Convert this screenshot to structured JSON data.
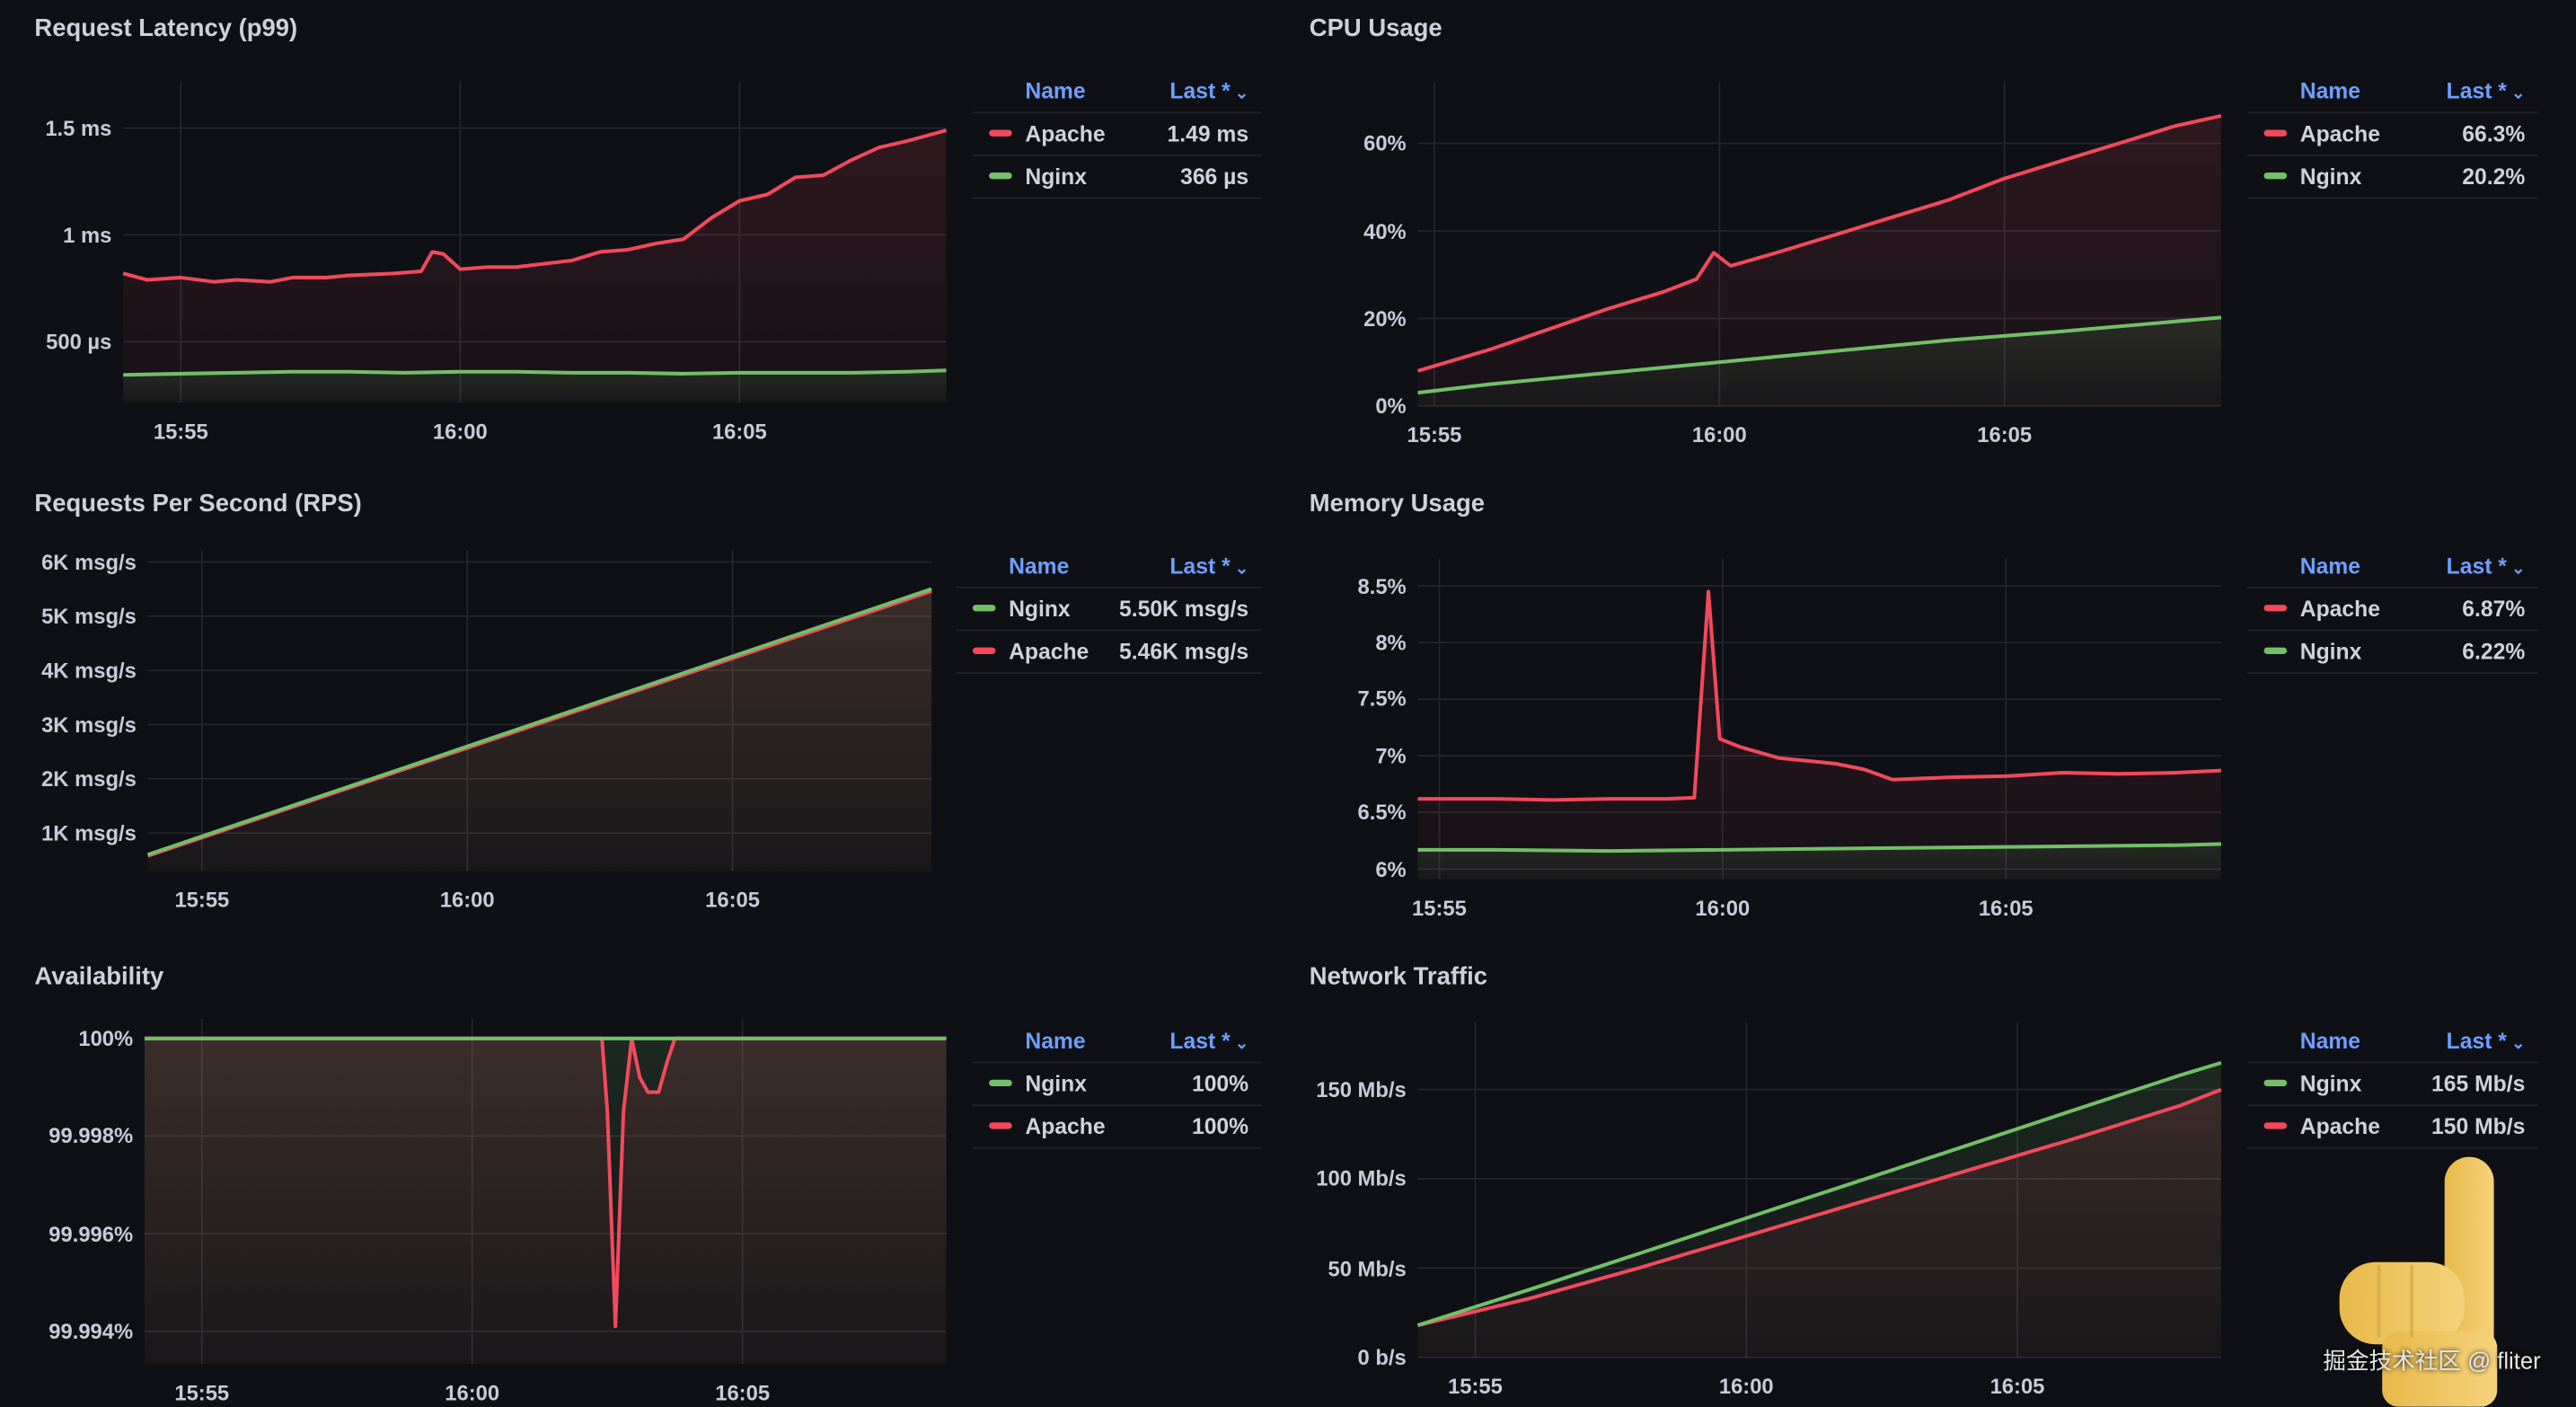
{
  "colors": {
    "apache": "#f2495c",
    "nginx": "#73bf69",
    "legend_header": "#6e9fff",
    "grid": "#24262e"
  },
  "watermark": "掘金技术社区 @ fliter",
  "panels": [
    {
      "title": "Request Latency (p99)",
      "legend": {
        "name_header": "Name",
        "last_header": "Last *",
        "sort_icon": "chevron-down-icon",
        "rows": [
          {
            "name": "Apache",
            "value": "1.49 ms",
            "color": "#f2495c"
          },
          {
            "name": "Nginx",
            "value": "366 µs",
            "color": "#73bf69"
          }
        ]
      },
      "chart_data": {
        "type": "area",
        "title": "Request Latency (p99)",
        "xlabel": "",
        "ylabel": "ms",
        "xlim": [
          53.97,
          68.7
        ],
        "ylim": [
          0.215,
          1.715
        ],
        "xticks": [
          {
            "v": 55,
            "label": "15:55"
          },
          {
            "v": 60,
            "label": "16:00"
          },
          {
            "v": 65,
            "label": "16:05"
          }
        ],
        "yticks": [
          {
            "v": 0.5,
            "label": "500 µs"
          },
          {
            "v": 1,
            "label": "1 ms"
          },
          {
            "v": 1.5,
            "label": "1.5 ms"
          }
        ],
        "series": [
          {
            "name": "Apache",
            "color": "#f2495c",
            "x": [
              53.97,
              54.4,
              55,
              55.6,
              56,
              56.6,
              57,
              57.6,
              58,
              58.8,
              59.3,
              59.5,
              59.7,
              60,
              60.5,
              61,
              62,
              62.5,
              63,
              63.5,
              64,
              64.5,
              65,
              65.5,
              66,
              66.5,
              67,
              67.5,
              68,
              68.7
            ],
            "y": [
              0.82,
              0.79,
              0.8,
              0.78,
              0.79,
              0.78,
              0.8,
              0.8,
              0.81,
              0.82,
              0.83,
              0.92,
              0.91,
              0.84,
              0.85,
              0.85,
              0.88,
              0.92,
              0.93,
              0.96,
              0.98,
              1.08,
              1.16,
              1.19,
              1.27,
              1.28,
              1.35,
              1.41,
              1.44,
              1.49
            ]
          },
          {
            "name": "Nginx",
            "color": "#73bf69",
            "x": [
              53.97,
              55,
              56,
              57,
              58,
              59,
              60,
              61,
              62,
              63,
              64,
              65,
              66,
              67,
              68,
              68.7
            ],
            "y": [
              0.345,
              0.35,
              0.355,
              0.36,
              0.36,
              0.355,
              0.36,
              0.36,
              0.355,
              0.355,
              0.35,
              0.355,
              0.355,
              0.355,
              0.36,
              0.366
            ]
          }
        ]
      }
    },
    {
      "title": "CPU Usage",
      "legend": {
        "name_header": "Name",
        "last_header": "Last *",
        "sort_icon": "chevron-down-icon",
        "rows": [
          {
            "name": "Apache",
            "value": "66.3%",
            "color": "#f2495c"
          },
          {
            "name": "Nginx",
            "value": "20.2%",
            "color": "#73bf69"
          }
        ]
      },
      "chart_data": {
        "type": "area",
        "title": "CPU Usage",
        "xlabel": "",
        "ylabel": "%",
        "xlim": [
          54.71,
          68.8
        ],
        "ylim": [
          0,
          74
        ],
        "xticks": [
          {
            "v": 55,
            "label": "15:55"
          },
          {
            "v": 60,
            "label": "16:00"
          },
          {
            "v": 65,
            "label": "16:05"
          }
        ],
        "yticks": [
          {
            "v": 0,
            "label": "0%"
          },
          {
            "v": 20,
            "label": "20%"
          },
          {
            "v": 40,
            "label": "40%"
          },
          {
            "v": 60,
            "label": "60%"
          }
        ],
        "series": [
          {
            "name": "Apache",
            "color": "#f2495c",
            "x": [
              54.71,
              56,
              57,
              58,
              59,
              59.6,
              59.9,
              60.2,
              61,
              62,
              63,
              64,
              65,
              66,
              67,
              68,
              68.8
            ],
            "y": [
              8,
              13,
              17.5,
              22,
              26,
              29,
              35,
              32,
              35,
              39,
              43,
              47,
              52,
              56,
              60,
              64,
              66.3
            ]
          },
          {
            "name": "Nginx",
            "color": "#73bf69",
            "x": [
              54.71,
              56,
              58,
              60,
              62,
              64,
              66,
              68,
              68.8
            ],
            "y": [
              3,
              5,
              7.5,
              10,
              12.5,
              15,
              17,
              19.3,
              20.2
            ]
          }
        ]
      }
    },
    {
      "title": "Requests Per Second (RPS)",
      "legend": {
        "name_header": "Name",
        "last_header": "Last *",
        "sort_icon": "chevron-down-icon",
        "rows": [
          {
            "name": "Nginx",
            "value": "5.50K msg/s",
            "color": "#73bf69"
          },
          {
            "name": "Apache",
            "value": "5.46K msg/s",
            "color": "#f2495c"
          }
        ]
      },
      "chart_data": {
        "type": "area",
        "title": "Requests Per Second (RPS)",
        "xlabel": "",
        "ylabel": "K msg/s",
        "xlim": [
          53.98,
          68.75
        ],
        "ylim": [
          0.3,
          6.21
        ],
        "xticks": [
          {
            "v": 55,
            "label": "15:55"
          },
          {
            "v": 60,
            "label": "16:00"
          },
          {
            "v": 65,
            "label": "16:05"
          }
        ],
        "yticks": [
          {
            "v": 1,
            "label": "1K msg/s"
          },
          {
            "v": 2,
            "label": "2K msg/s"
          },
          {
            "v": 3,
            "label": "3K msg/s"
          },
          {
            "v": 4,
            "label": "4K msg/s"
          },
          {
            "v": 5,
            "label": "5K msg/s"
          },
          {
            "v": 6,
            "label": "6K msg/s"
          }
        ],
        "series": [
          {
            "name": "Nginx",
            "color": "#73bf69",
            "x": [
              53.98,
              68.75
            ],
            "y": [
              0.6,
              5.5
            ]
          },
          {
            "name": "Apache",
            "color": "#f2495c",
            "x": [
              53.98,
              68.75
            ],
            "y": [
              0.58,
              5.46
            ]
          }
        ]
      }
    },
    {
      "title": "Memory Usage",
      "legend": {
        "name_header": "Name",
        "last_header": "Last *",
        "sort_icon": "chevron-down-icon",
        "rows": [
          {
            "name": "Apache",
            "value": "6.87%",
            "color": "#f2495c"
          },
          {
            "name": "Nginx",
            "value": "6.22%",
            "color": "#73bf69"
          }
        ]
      },
      "chart_data": {
        "type": "area",
        "title": "Memory Usage",
        "xlabel": "",
        "ylabel": "%",
        "xlim": [
          54.62,
          68.8
        ],
        "ylim": [
          5.91,
          8.74
        ],
        "xticks": [
          {
            "v": 55,
            "label": "15:55"
          },
          {
            "v": 60,
            "label": "16:00"
          },
          {
            "v": 65,
            "label": "16:05"
          }
        ],
        "yticks": [
          {
            "v": 6,
            "label": "6%"
          },
          {
            "v": 6.5,
            "label": "6.5%"
          },
          {
            "v": 7,
            "label": "7%"
          },
          {
            "v": 7.5,
            "label": "7.5%"
          },
          {
            "v": 8,
            "label": "8%"
          },
          {
            "v": 8.5,
            "label": "8.5%"
          }
        ],
        "series": [
          {
            "name": "Apache",
            "color": "#f2495c",
            "x": [
              54.62,
              56,
              57,
              58,
              59,
              59.5,
              59.75,
              59.95,
              60.3,
              61,
              62,
              62.5,
              63,
              63.5,
              64,
              65,
              66,
              67,
              68,
              68.8
            ],
            "y": [
              6.62,
              6.62,
              6.61,
              6.62,
              6.62,
              6.63,
              8.45,
              7.15,
              7.08,
              6.98,
              6.93,
              6.88,
              6.79,
              6.8,
              6.81,
              6.82,
              6.85,
              6.84,
              6.85,
              6.87
            ]
          },
          {
            "name": "Nginx",
            "color": "#73bf69",
            "x": [
              54.62,
              56,
              58,
              60,
              62,
              64,
              66,
              68,
              68.8
            ],
            "y": [
              6.17,
              6.17,
              6.16,
              6.17,
              6.18,
              6.19,
              6.2,
              6.21,
              6.22
            ]
          }
        ]
      }
    },
    {
      "title": "Availability",
      "legend": {
        "name_header": "Name",
        "last_header": "Last *",
        "sort_icon": "chevron-down-icon",
        "rows": [
          {
            "name": "Nginx",
            "value": "100%",
            "color": "#73bf69"
          },
          {
            "name": "Apache",
            "value": "100%",
            "color": "#f2495c"
          }
        ]
      },
      "chart_data": {
        "type": "area",
        "title": "Availability",
        "xlabel": "",
        "ylabel": "%",
        "xlim": [
          53.94,
          68.77
        ],
        "ylim": [
          99.99333,
          100.0004
        ],
        "xticks": [
          {
            "v": 55,
            "label": "15:55"
          },
          {
            "v": 60,
            "label": "16:00"
          },
          {
            "v": 65,
            "label": "16:05"
          }
        ],
        "yticks": [
          {
            "v": 99.994,
            "label": "99.994%"
          },
          {
            "v": 99.996,
            "label": "99.996%"
          },
          {
            "v": 99.998,
            "label": "99.998%"
          },
          {
            "v": 100,
            "label": "100%"
          }
        ],
        "series": [
          {
            "name": "Nginx",
            "color": "#73bf69",
            "x": [
              53.94,
              68.77
            ],
            "y": [
              100,
              100
            ]
          },
          {
            "name": "Apache",
            "color": "#f2495c",
            "x": [
              53.94,
              62.4,
              62.5,
              62.65,
              62.8,
              62.95,
              63.1,
              63.25,
              63.45,
              63.6,
              63.75,
              68.77
            ],
            "y": [
              100,
              100,
              99.9985,
              99.9941,
              99.9985,
              100,
              99.9992,
              99.9989,
              99.9989,
              99.9995,
              100,
              100
            ]
          }
        ]
      }
    },
    {
      "title": "Network Traffic",
      "legend": {
        "name_header": "Name",
        "last_header": "Last *",
        "sort_icon": "chevron-down-icon",
        "rows": [
          {
            "name": "Nginx",
            "value": "165 Mb/s",
            "color": "#73bf69"
          },
          {
            "name": "Apache",
            "value": "150 Mb/s",
            "color": "#f2495c"
          }
        ]
      },
      "chart_data": {
        "type": "area",
        "title": "Network Traffic",
        "xlabel": "",
        "ylabel": "Mb/s",
        "xlim": [
          53.94,
          68.76
        ],
        "ylim": [
          0,
          187.7
        ],
        "xticks": [
          {
            "v": 55,
            "label": "15:55"
          },
          {
            "v": 60,
            "label": "16:00"
          },
          {
            "v": 65,
            "label": "16:05"
          }
        ],
        "yticks": [
          {
            "v": 0,
            "label": "0 b/s"
          },
          {
            "v": 50,
            "label": "50 Mb/s"
          },
          {
            "v": 100,
            "label": "100 Mb/s"
          },
          {
            "v": 150,
            "label": "150 Mb/s"
          }
        ],
        "series": [
          {
            "name": "Nginx",
            "color": "#73bf69",
            "x": [
              53.94,
              56,
              58,
              60,
              62,
              64,
              66,
              68,
              68.76
            ],
            "y": [
              18,
              38,
              58,
              78,
              98,
              118,
              138,
              158,
              165
            ]
          },
          {
            "name": "Apache",
            "color": "#f2495c",
            "x": [
              53.94,
              56,
              58,
              60,
              62,
              64,
              66,
              68,
              68.76
            ],
            "y": [
              18,
              33,
              50,
              68,
              86,
              104,
              122,
              141,
              150
            ]
          }
        ]
      }
    }
  ]
}
